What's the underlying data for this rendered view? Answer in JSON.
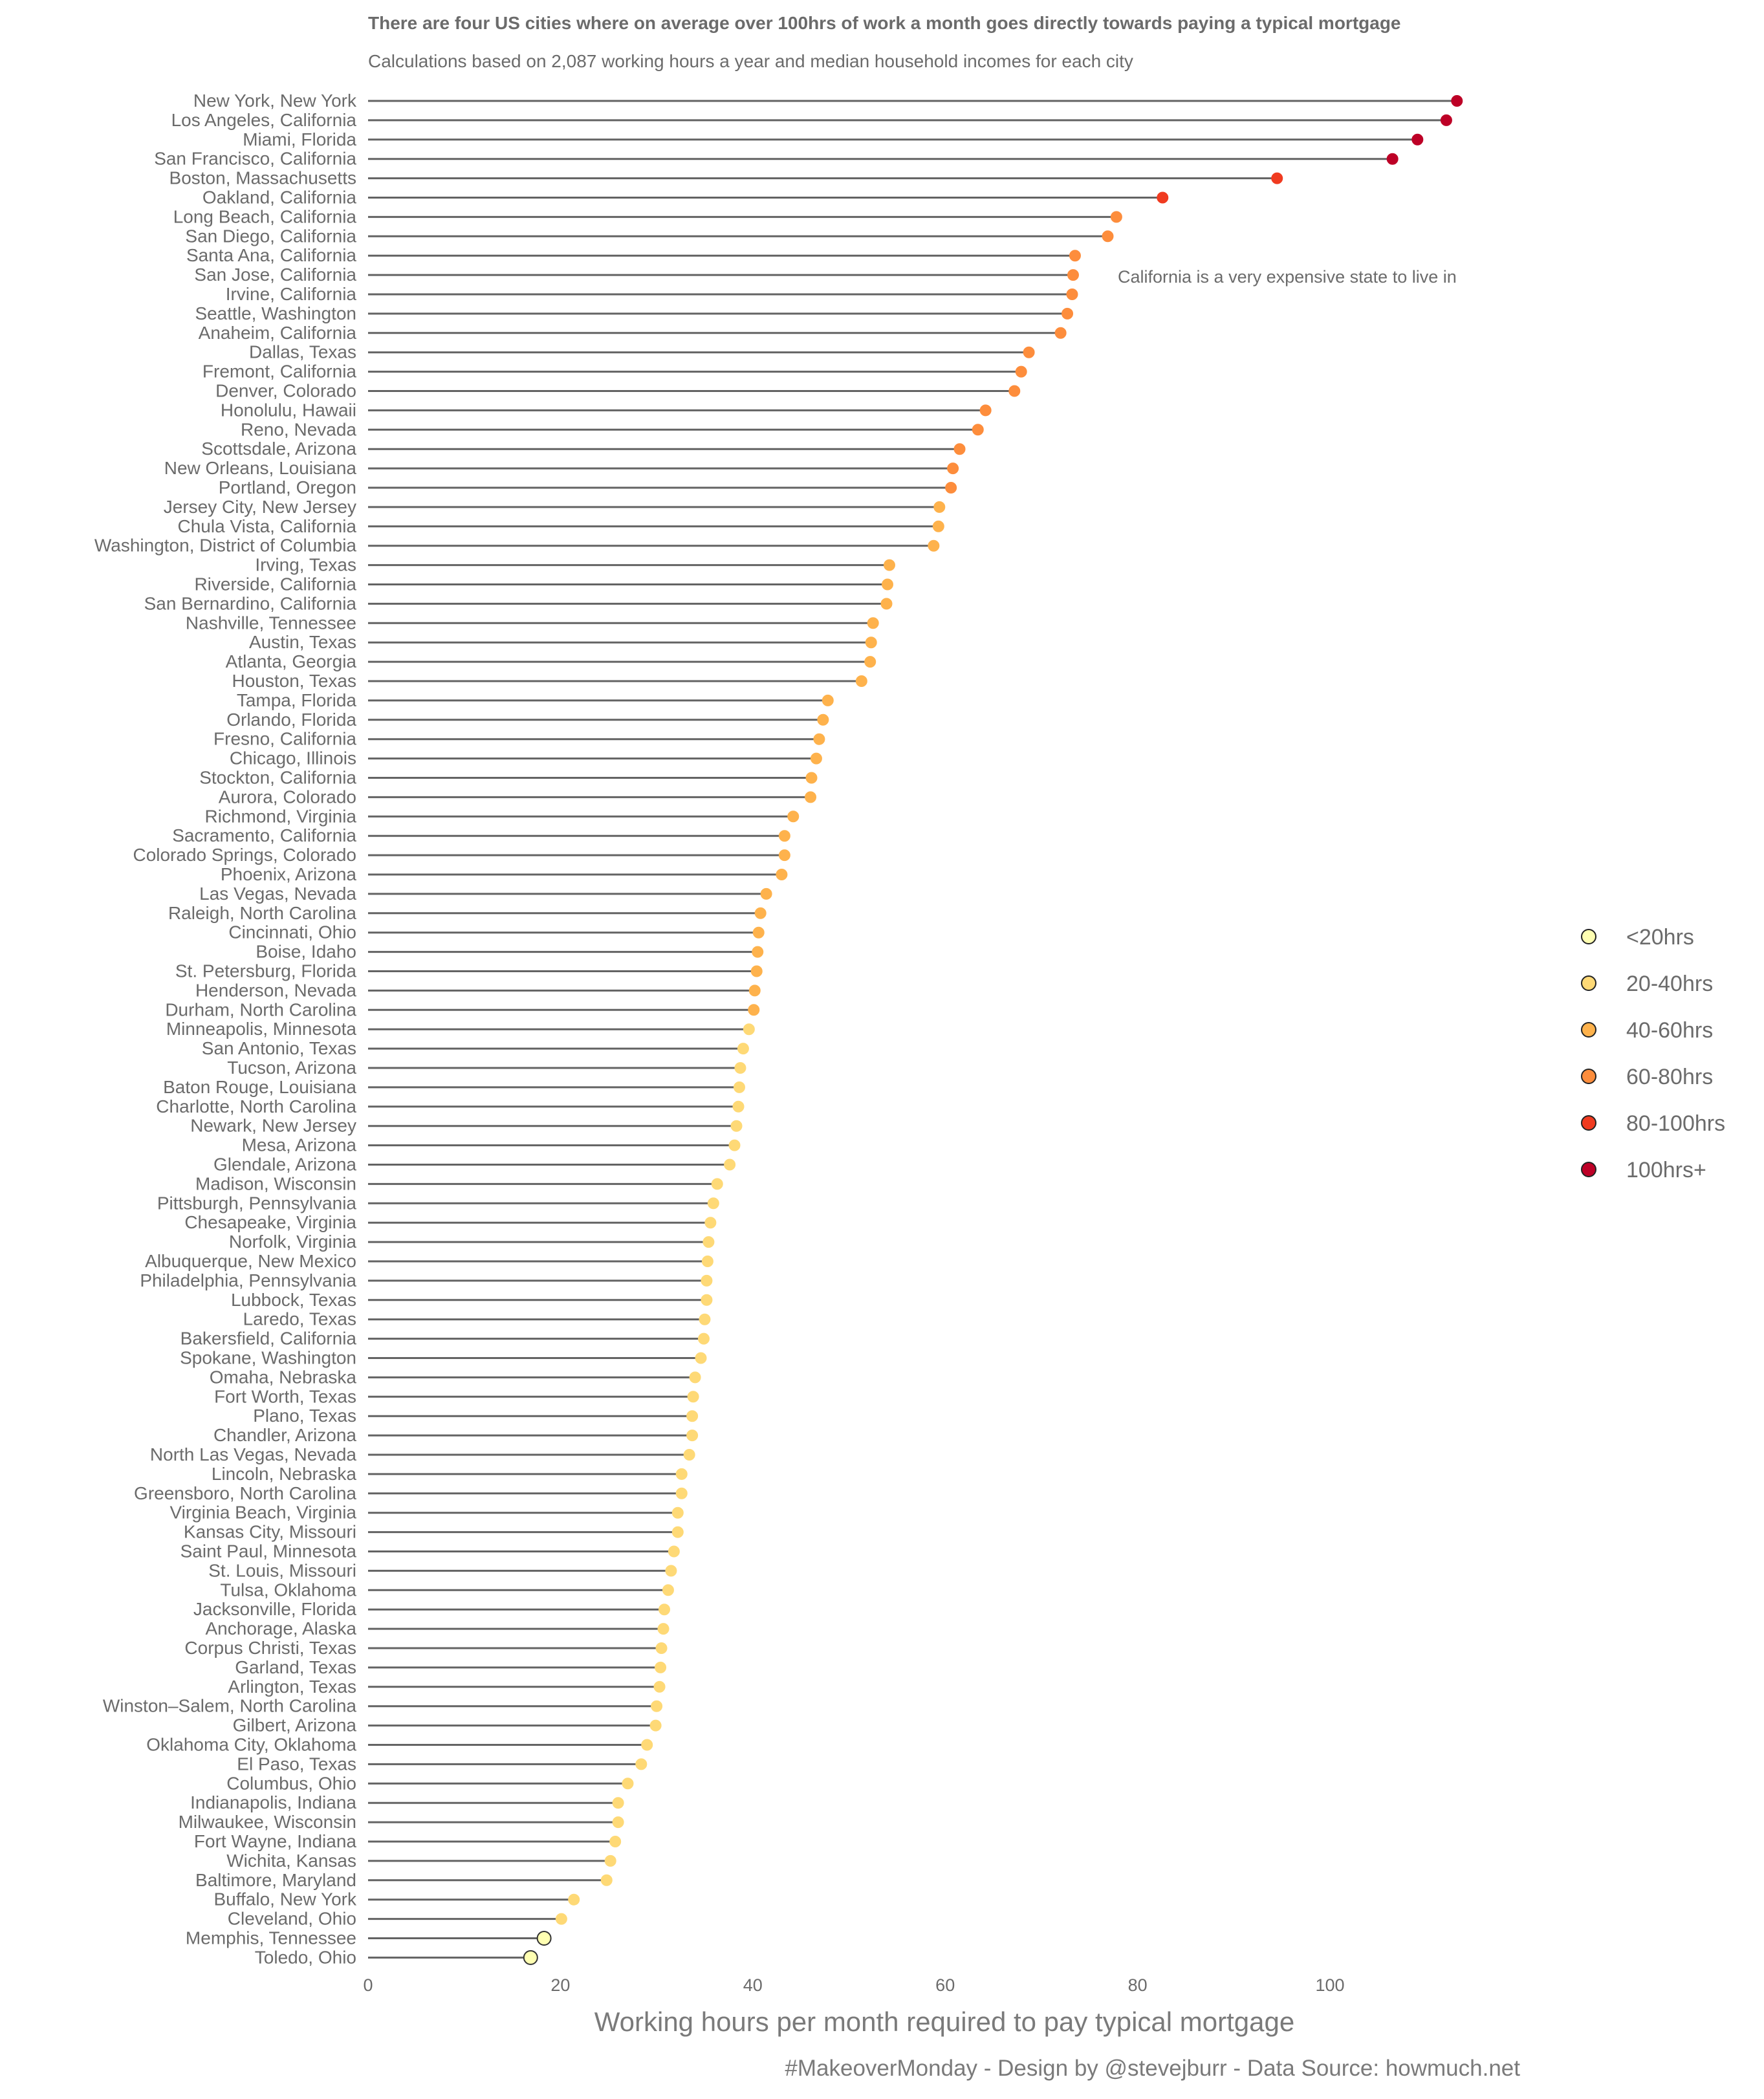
{
  "chart_data": {
    "type": "lollipop",
    "title": "There are four US cities where on average over 100hrs of work a month goes directly towards paying a typical mortgage",
    "subtitle": "Calculations based on 2,087 working hours a year and median household incomes for each city",
    "annotation": "California is a very expensive state to live in",
    "xlabel": "Working hours per month required to pay typical mortgage",
    "caption": "#MakeoverMonday - Design by @stevejburr - Data Source: howmuch.net",
    "xlim": [
      0,
      115
    ],
    "xticks": [
      0,
      20,
      40,
      60,
      80,
      100
    ],
    "grid": false,
    "legend_position": "right",
    "legend": [
      {
        "label": "<20hrs",
        "color": "#ffffb2"
      },
      {
        "label": "20-40hrs",
        "color": "#fed976"
      },
      {
        "label": "40-60hrs",
        "color": "#feb24c"
      },
      {
        "label": "60-80hrs",
        "color": "#fd8d3c"
      },
      {
        "label": "80-100hrs",
        "color": "#f03b20"
      },
      {
        "label": "100hrs+",
        "color": "#bd0026"
      }
    ],
    "stem_color": "#636363",
    "points": [
      {
        "city": "New York, New York",
        "hours": 113.2
      },
      {
        "city": "Los Angeles, California",
        "hours": 112.1
      },
      {
        "city": "Miami, Florida",
        "hours": 109.1
      },
      {
        "city": "San Francisco, California",
        "hours": 106.5
      },
      {
        "city": "Boston, Massachusetts",
        "hours": 94.5
      },
      {
        "city": "Oakland, California",
        "hours": 82.6
      },
      {
        "city": "Long Beach, California",
        "hours": 77.8
      },
      {
        "city": "San Diego, California",
        "hours": 76.9
      },
      {
        "city": "Santa Ana, California",
        "hours": 73.5
      },
      {
        "city": "San Jose, California",
        "hours": 73.3
      },
      {
        "city": "Irvine, California",
        "hours": 73.2
      },
      {
        "city": "Seattle, Washington",
        "hours": 72.7
      },
      {
        "city": "Anaheim, California",
        "hours": 72.0
      },
      {
        "city": "Dallas, Texas",
        "hours": 68.7
      },
      {
        "city": "Fremont, California",
        "hours": 67.9
      },
      {
        "city": "Denver, Colorado",
        "hours": 67.2
      },
      {
        "city": "Honolulu, Hawaii",
        "hours": 64.2
      },
      {
        "city": "Reno, Nevada",
        "hours": 63.4
      },
      {
        "city": "Scottsdale, Arizona",
        "hours": 61.5
      },
      {
        "city": "New Orleans, Louisiana",
        "hours": 60.8
      },
      {
        "city": "Portland, Oregon",
        "hours": 60.6
      },
      {
        "city": "Jersey City, New Jersey",
        "hours": 59.4
      },
      {
        "city": "Chula Vista, California",
        "hours": 59.3
      },
      {
        "city": "Washington, District of Columbia",
        "hours": 58.8
      },
      {
        "city": "Irving, Texas",
        "hours": 54.2
      },
      {
        "city": "Riverside, California",
        "hours": 54.0
      },
      {
        "city": "San Bernardino, California",
        "hours": 53.9
      },
      {
        "city": "Nashville, Tennessee",
        "hours": 52.5
      },
      {
        "city": "Austin, Texas",
        "hours": 52.3
      },
      {
        "city": "Atlanta, Georgia",
        "hours": 52.2
      },
      {
        "city": "Houston, Texas",
        "hours": 51.3
      },
      {
        "city": "Tampa, Florida",
        "hours": 47.8
      },
      {
        "city": "Orlando, Florida",
        "hours": 47.3
      },
      {
        "city": "Fresno, California",
        "hours": 46.9
      },
      {
        "city": "Chicago, Illinois",
        "hours": 46.6
      },
      {
        "city": "Stockton, California",
        "hours": 46.1
      },
      {
        "city": "Aurora, Colorado",
        "hours": 46.0
      },
      {
        "city": "Richmond, Virginia",
        "hours": 44.2
      },
      {
        "city": "Sacramento, California",
        "hours": 43.3
      },
      {
        "city": "Colorado Springs, Colorado",
        "hours": 43.3
      },
      {
        "city": "Phoenix, Arizona",
        "hours": 43.0
      },
      {
        "city": "Las Vegas, Nevada",
        "hours": 41.4
      },
      {
        "city": "Raleigh, North Carolina",
        "hours": 40.8
      },
      {
        "city": "Cincinnati, Ohio",
        "hours": 40.6
      },
      {
        "city": "Boise, Idaho",
        "hours": 40.5
      },
      {
        "city": "St. Petersburg, Florida",
        "hours": 40.4
      },
      {
        "city": "Henderson, Nevada",
        "hours": 40.2
      },
      {
        "city": "Durham, North Carolina",
        "hours": 40.1
      },
      {
        "city": "Minneapolis, Minnesota",
        "hours": 39.6
      },
      {
        "city": "San Antonio, Texas",
        "hours": 39.0
      },
      {
        "city": "Tucson, Arizona",
        "hours": 38.7
      },
      {
        "city": "Baton Rouge, Louisiana",
        "hours": 38.6
      },
      {
        "city": "Charlotte, North Carolina",
        "hours": 38.5
      },
      {
        "city": "Newark, New Jersey",
        "hours": 38.3
      },
      {
        "city": "Mesa, Arizona",
        "hours": 38.1
      },
      {
        "city": "Glendale, Arizona",
        "hours": 37.6
      },
      {
        "city": "Madison, Wisconsin",
        "hours": 36.3
      },
      {
        "city": "Pittsburgh, Pennsylvania",
        "hours": 35.9
      },
      {
        "city": "Chesapeake, Virginia",
        "hours": 35.6
      },
      {
        "city": "Norfolk, Virginia",
        "hours": 35.4
      },
      {
        "city": "Albuquerque, New Mexico",
        "hours": 35.3
      },
      {
        "city": "Philadelphia, Pennsylvania",
        "hours": 35.2
      },
      {
        "city": "Lubbock, Texas",
        "hours": 35.2
      },
      {
        "city": "Laredo, Texas",
        "hours": 35.0
      },
      {
        "city": "Bakersfield, California",
        "hours": 34.9
      },
      {
        "city": "Spokane, Washington",
        "hours": 34.6
      },
      {
        "city": "Omaha, Nebraska",
        "hours": 34.0
      },
      {
        "city": "Fort Worth, Texas",
        "hours": 33.8
      },
      {
        "city": "Plano, Texas",
        "hours": 33.7
      },
      {
        "city": "Chandler, Arizona",
        "hours": 33.7
      },
      {
        "city": "North Las Vegas, Nevada",
        "hours": 33.4
      },
      {
        "city": "Lincoln, Nebraska",
        "hours": 32.6
      },
      {
        "city": "Greensboro, North Carolina",
        "hours": 32.6
      },
      {
        "city": "Virginia Beach, Virginia",
        "hours": 32.2
      },
      {
        "city": "Kansas City, Missouri",
        "hours": 32.2
      },
      {
        "city": "Saint Paul, Minnesota",
        "hours": 31.8
      },
      {
        "city": "St. Louis, Missouri",
        "hours": 31.5
      },
      {
        "city": "Tulsa, Oklahoma",
        "hours": 31.2
      },
      {
        "city": "Jacksonville, Florida",
        "hours": 30.8
      },
      {
        "city": "Anchorage, Alaska",
        "hours": 30.7
      },
      {
        "city": "Corpus Christi, Texas",
        "hours": 30.5
      },
      {
        "city": "Garland, Texas",
        "hours": 30.4
      },
      {
        "city": "Arlington, Texas",
        "hours": 30.3
      },
      {
        "city": "Winston–Salem, North Carolina",
        "hours": 30.0
      },
      {
        "city": "Gilbert, Arizona",
        "hours": 29.9
      },
      {
        "city": "Oklahoma City, Oklahoma",
        "hours": 29.0
      },
      {
        "city": "El Paso, Texas",
        "hours": 28.4
      },
      {
        "city": "Columbus, Ohio",
        "hours": 27.0
      },
      {
        "city": "Indianapolis, Indiana",
        "hours": 26.0
      },
      {
        "city": "Milwaukee, Wisconsin",
        "hours": 26.0
      },
      {
        "city": "Fort Wayne, Indiana",
        "hours": 25.7
      },
      {
        "city": "Wichita, Kansas",
        "hours": 25.2
      },
      {
        "city": "Baltimore, Maryland",
        "hours": 24.8
      },
      {
        "city": "Buffalo, New York",
        "hours": 21.4
      },
      {
        "city": "Cleveland, Ohio",
        "hours": 20.1
      },
      {
        "city": "Memphis, Tennessee",
        "hours": 18.3
      },
      {
        "city": "Toledo, Ohio",
        "hours": 16.9
      }
    ]
  }
}
